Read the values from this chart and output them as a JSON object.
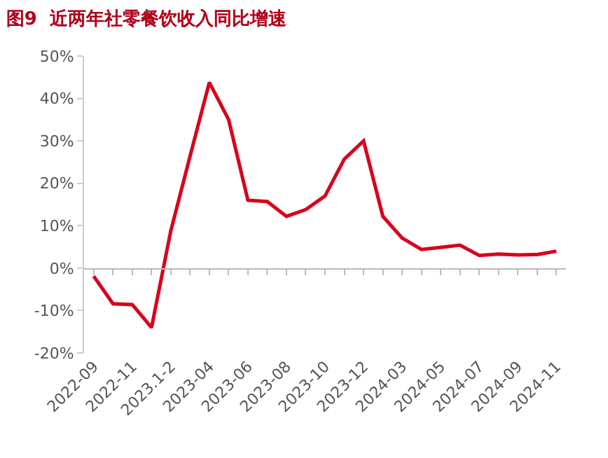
{
  "chart_data": {
    "type": "line",
    "title": "图9  近两年社零餐饮收入同比增速",
    "categories": [
      "2022-09",
      null,
      "2022-11",
      null,
      "2023.1-2",
      null,
      "2023-04",
      null,
      "2023-06",
      null,
      "2023-08",
      null,
      "2023-10",
      null,
      "2023-12",
      null,
      "2024-03",
      null,
      "2024-05",
      null,
      "2024-07",
      null,
      "2024-09",
      null,
      "2024-11"
    ],
    "series": [
      {
        "color": "#d9001b",
        "values": [
          -1.9,
          -8.4,
          -8.6,
          -14,
          8.8,
          26.4,
          43.8,
          35,
          16,
          15.7,
          12.2,
          13.8,
          17,
          25.7,
          30,
          12.2,
          7.1,
          4.4,
          4.9,
          5.4,
          3.0,
          3.3,
          3.1,
          3.2,
          4.0
        ]
      }
    ],
    "ylim": [
      -20,
      50
    ],
    "yticks": [
      {
        "value": -20,
        "label": "-20%"
      },
      {
        "value": -10,
        "label": "-10%"
      },
      {
        "value": 0,
        "label": "0%"
      },
      {
        "value": 10,
        "label": "10%"
      },
      {
        "value": 20,
        "label": "20%"
      },
      {
        "value": 30,
        "label": "30%"
      },
      {
        "value": 40,
        "label": "40%"
      },
      {
        "value": 50,
        "label": "50%"
      }
    ],
    "marker": "none",
    "line_style": "solid"
  }
}
